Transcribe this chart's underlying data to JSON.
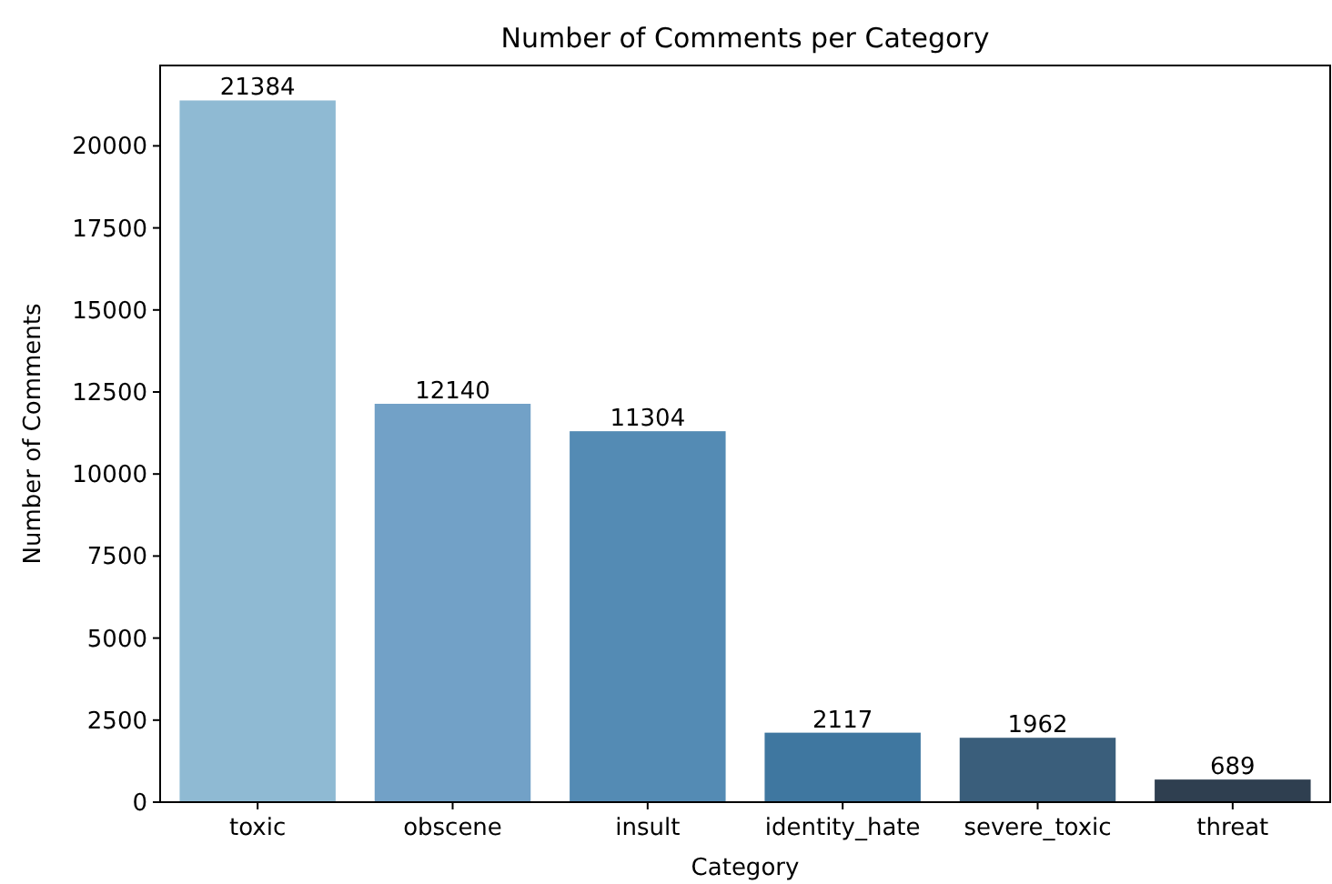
{
  "chart_data": {
    "type": "bar",
    "title": "Number of Comments per Category",
    "xlabel": "Category",
    "ylabel": "Number of Comments",
    "categories": [
      "toxic",
      "obscene",
      "insult",
      "identity_hate",
      "severe_toxic",
      "threat"
    ],
    "values": [
      21384,
      12140,
      11304,
      2117,
      1962,
      689
    ],
    "colors": [
      "#8fbad3",
      "#72a1c7",
      "#548bb4",
      "#3f77a0",
      "#3a5e7b",
      "#2f3f50"
    ],
    "ylim": [
      0,
      22450
    ],
    "yticks": [
      0,
      2500,
      5000,
      7500,
      10000,
      12500,
      15000,
      17500,
      20000
    ],
    "data_labels": true,
    "grid": false
  }
}
